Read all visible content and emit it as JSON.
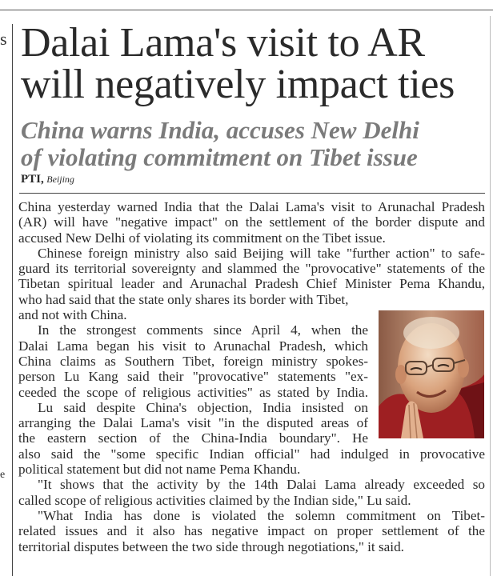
{
  "left_column_fragments": [
    "s",
    "e"
  ],
  "headline": {
    "line1": "Dalai Lama's visit to AR",
    "line2": "will negatively impact ties"
  },
  "subheadline": {
    "line1": "China warns India, accuses New Delhi",
    "line2": "of violating commitment on Tibet issue"
  },
  "byline": {
    "agency": "PTI,",
    "place": "Beijing"
  },
  "photo": {
    "subject": "Dalai Lama",
    "colors": {
      "robe": "#9e1f22",
      "skin": "#d9a27c",
      "background": "#a8705a"
    }
  },
  "paragraphs": [
    [
      "China yesterday warned India that the Dalai Lama's visit to Arunachal Pradesh",
      "(AR) will have \"negative impact\" on the settlement of the border dispute and",
      "accused New Delhi of violating its commitment on the Tibet issue."
    ],
    [
      "Chinese foreign ministry also said Beijing will take \"further action\" to safe-",
      "guard its territorial sovereignty and slammed the \"provocative\" statements of the",
      "Tibetan spiritual leader and Arunachal Pradesh Chief Minister Pema Khandu,",
      "who had said that the state only shares its border with Tibet,",
      "and not with China."
    ],
    [
      "In the strongest comments since April 4, when the",
      "Dalai Lama began his visit to Arunachal Pradesh, which",
      "China claims as Southern Tibet, foreign ministry spokes-",
      "person Lu Kang said their \"provocative\" statements \"ex-",
      "ceeded the scope of religious activities\" as stated by India."
    ],
    [
      "Lu said despite China's objection, India insisted on",
      "arranging the Dalai Lama's visit \"in the disputed areas of",
      "the eastern section of the China-India boundary\". He",
      "also said the \"some specific Indian official\" had indulged in provocative",
      "political statement but did not name Pema Khandu."
    ],
    [
      "\"It shows that the activity by the 14th Dalai Lama already exceeded so",
      "called scope of religious activities claimed by the Indian side,\" Lu said."
    ],
    [
      "\"What India has done is violated the solemn commitment on Tibet-",
      "related issues and it also has negative impact on proper settlement of the",
      "territorial disputes between the two side through negotiations,\" it said."
    ]
  ]
}
